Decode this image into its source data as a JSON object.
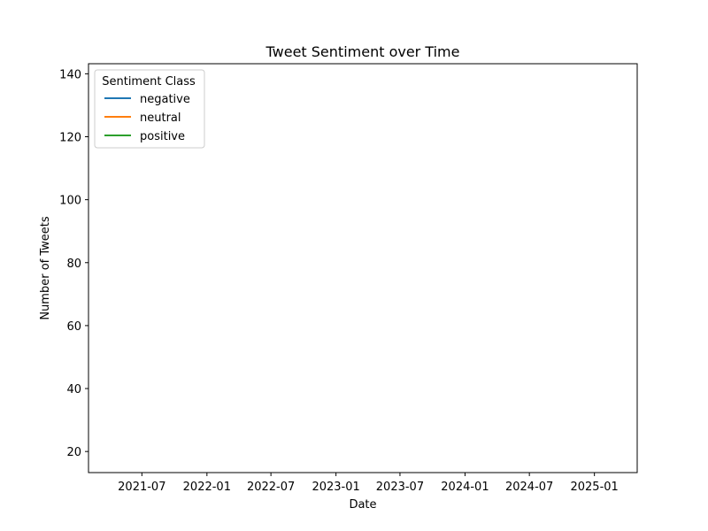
{
  "chart_data": {
    "type": "line",
    "title": "Tweet Sentiment over Time",
    "xlabel": "Date",
    "ylabel": "Number of Tweets",
    "x_axis_type": "date",
    "xlim": [
      "2021-01-31",
      "2025-05-02"
    ],
    "ylim": [
      13.3,
      143.2
    ],
    "x_ticks": [
      "2021-07",
      "2022-01",
      "2022-07",
      "2023-01",
      "2023-07",
      "2024-01",
      "2024-07",
      "2025-01"
    ],
    "y_ticks": [
      20,
      40,
      60,
      80,
      100,
      120,
      140
    ],
    "grid": false,
    "legend": {
      "title": "Sentiment Class",
      "placement": "top-left",
      "entries": [
        "negative",
        "neutral",
        "positive"
      ]
    },
    "series": [
      {
        "name": "negative",
        "color": "#1f77b4",
        "x": [],
        "y": []
      },
      {
        "name": "neutral",
        "color": "#ff7f0e",
        "x": [],
        "y": []
      },
      {
        "name": "positive",
        "color": "#2ca02c",
        "x": [],
        "y": []
      }
    ]
  }
}
